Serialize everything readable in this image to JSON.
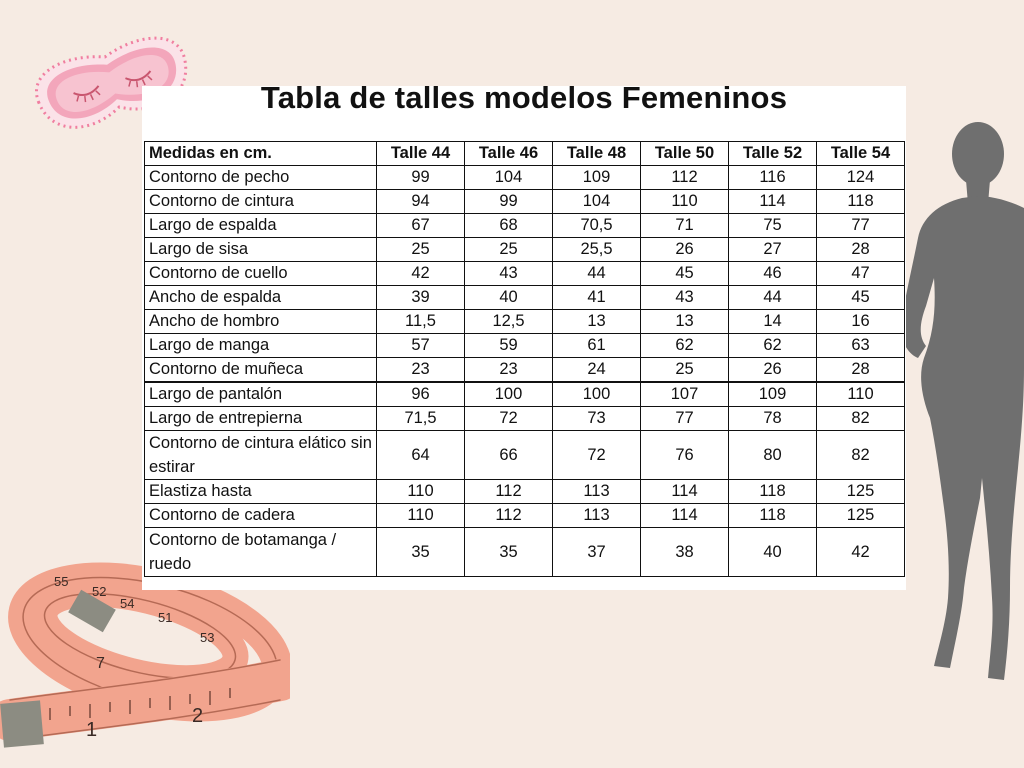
{
  "title": "Tabla de talles modelos Femeninos",
  "table": {
    "headers": [
      "Medidas en cm.",
      "Talle 44",
      "Talle 46",
      "Talle 48",
      "Talle 50",
      "Talle 52",
      "Talle 54"
    ],
    "rows": [
      [
        "Contorno de pecho",
        "99",
        "104",
        "109",
        "112",
        "116",
        "124"
      ],
      [
        "Contorno de cintura",
        "94",
        "99",
        "104",
        "110",
        "114",
        "118"
      ],
      [
        "Largo de espalda",
        "67",
        "68",
        "70,5",
        "71",
        "75",
        "77"
      ],
      [
        "Largo de sisa",
        "25",
        "25",
        "25,5",
        "26",
        "27",
        "28"
      ],
      [
        "Contorno de cuello",
        "42",
        "43",
        "44",
        "45",
        "46",
        "47"
      ],
      [
        "Ancho de espalda",
        "39",
        "40",
        "41",
        "43",
        "44",
        "45"
      ],
      [
        "Ancho de hombro",
        "11,5",
        "12,5",
        "13",
        "13",
        "14",
        "16"
      ],
      [
        "Largo de manga",
        "57",
        "59",
        "61",
        "62",
        "62",
        "63"
      ],
      [
        "Contorno de muñeca",
        "23",
        "23",
        "24",
        "25",
        "26",
        "28"
      ],
      [
        "Largo de pantalón",
        "96",
        "100",
        "100",
        "107",
        "109",
        "110"
      ],
      [
        "Largo de entrepierna",
        "71,5",
        "72",
        "73",
        "77",
        "78",
        "82"
      ],
      [
        "Contorno de cintura elático sin estirar",
        "64",
        "66",
        "72",
        "76",
        "80",
        "82"
      ],
      [
        "Elastiza hasta",
        "110",
        "112",
        "113",
        "114",
        "118",
        "125"
      ],
      [
        "Contorno de cadera",
        "110",
        "112",
        "113",
        "114",
        "118",
        "125"
      ],
      [
        "Contorno de botamanga / ruedo",
        "35",
        "35",
        "37",
        "38",
        "40",
        "42"
      ]
    ]
  },
  "decor": {
    "sleep_mask_icon": "sleep-mask-icon",
    "tape_measure_icon": "tape-measure-icon",
    "woman_silhouette_icon": "woman-silhouette-icon",
    "tape_marks": [
      "1",
      "2",
      "7",
      "55",
      "52",
      "54",
      "51",
      "53"
    ],
    "colors": {
      "background": "#f6ebe3",
      "mask": "#f07fa0",
      "mask_inner": "#f6b5c6",
      "tape": "#f2a48e",
      "silhouette": "#6f6f6f"
    }
  }
}
